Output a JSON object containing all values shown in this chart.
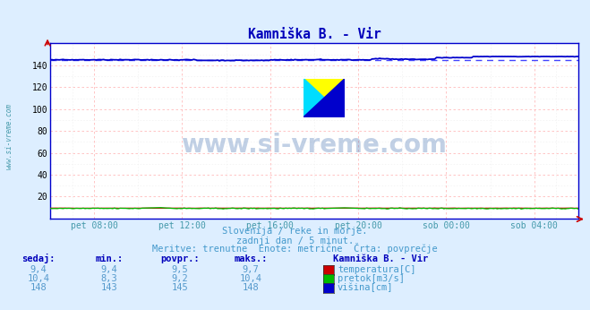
{
  "title": "Kamniška B. - Vir",
  "bg_color": "#ddeeff",
  "plot_bg_color": "#ffffff",
  "grid_color_h": "#ffbbbb",
  "grid_color_v": "#ffbbbb",
  "grid_color_minor_h": "#eeeeee",
  "grid_color_minor_v": "#eeeeee",
  "x_ticks_labels": [
    "pet 08:00",
    "pet 12:00",
    "pet 16:00",
    "pet 20:00",
    "sob 00:00",
    "sob 04:00"
  ],
  "x_ticks_pos": [
    0.0833,
    0.25,
    0.4167,
    0.5833,
    0.75,
    0.9167
  ],
  "y_min": 0,
  "y_max": 160,
  "y_ticks": [
    20,
    40,
    60,
    80,
    100,
    120,
    140
  ],
  "subtitle1": "Slovenija / reke in morje.",
  "subtitle2": "zadnji dan / 5 minut.",
  "subtitle3": "Meritve: trenutne  Enote: metrične  Črta: povprečje",
  "watermark": "www.si-vreme.com",
  "sidebar_text": "www.si-vreme.com",
  "temp_color": "#cc0000",
  "pretok_color": "#00bb00",
  "visina_color": "#0000cc",
  "visina_avg_color": "#4444ff",
  "table_headers": [
    "sedaj:",
    "min.:",
    "povpr.:",
    "maks.:"
  ],
  "table_col5_header": "Kamniška B. - Vir",
  "row1": [
    "9,4",
    "9,4",
    "9,5",
    "9,7",
    "temperatura[C]"
  ],
  "row2": [
    "10,4",
    "8,3",
    "9,2",
    "10,4",
    "pretok[m3/s]"
  ],
  "row3": [
    "148",
    "143",
    "145",
    "148",
    "višina[cm]"
  ],
  "n_points": 288,
  "visina_base": 145,
  "visina_min": 143,
  "visina_max": 148,
  "title_color": "#0000bb",
  "axis_color": "#0000cc",
  "text_color": "#4499cc",
  "label_color": "#4499aa",
  "table_val_color": "#5599cc",
  "table_header_color": "#0000bb"
}
